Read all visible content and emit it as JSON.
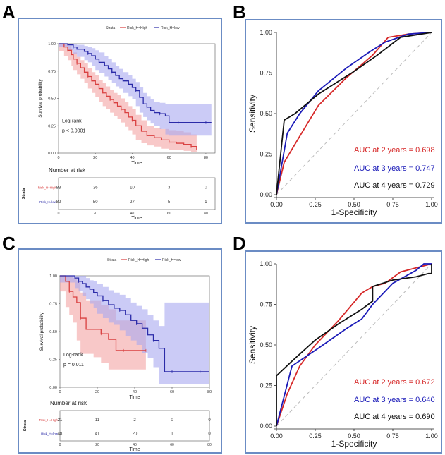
{
  "panel_labels": [
    "A",
    "B",
    "C",
    "D"
  ],
  "chart_data": [
    {
      "panel": "A",
      "type": "line",
      "subtype": "kaplan-meier",
      "legend_title": "Strata",
      "legend": [
        "Risk_H=High",
        "Risk_H=low"
      ],
      "xlabel": "Time",
      "ylabel": "Survival probability",
      "xlim": [
        0,
        85
      ],
      "ylim": [
        0,
        1
      ],
      "xticks": [
        "0",
        "20",
        "40",
        "60",
        "80"
      ],
      "yticks": [
        "0.00",
        "0.25",
        "0.50",
        "0.75",
        "1.00"
      ],
      "annotation": [
        "Log-rank",
        "p < 0.0001"
      ],
      "series": [
        {
          "name": "Risk_H=High",
          "color": "#d94040",
          "band": "#f4a3a3",
          "x": [
            0,
            3,
            5,
            7,
            8,
            10,
            12,
            14,
            16,
            18,
            20,
            22,
            24,
            26,
            28,
            30,
            32,
            34,
            36,
            38,
            40,
            42,
            45,
            48,
            52,
            56,
            60,
            64,
            68,
            72,
            75
          ],
          "y": [
            1,
            0.97,
            0.94,
            0.9,
            0.86,
            0.82,
            0.78,
            0.74,
            0.7,
            0.66,
            0.63,
            0.59,
            0.55,
            0.52,
            0.49,
            0.46,
            0.43,
            0.4,
            0.37,
            0.33,
            0.3,
            0.25,
            0.2,
            0.16,
            0.14,
            0.12,
            0.1,
            0.09,
            0.08,
            0.06,
            0.03
          ],
          "lo": [
            1,
            0.93,
            0.89,
            0.85,
            0.8,
            0.76,
            0.72,
            0.68,
            0.64,
            0.59,
            0.55,
            0.51,
            0.47,
            0.43,
            0.4,
            0.37,
            0.34,
            0.31,
            0.28,
            0.24,
            0.21,
            0.17,
            0.12,
            0.09,
            0.07,
            0.06,
            0.04,
            0.03,
            0.03,
            0.02,
            0.01
          ],
          "hi": [
            1,
            1,
            0.98,
            0.95,
            0.92,
            0.88,
            0.85,
            0.82,
            0.78,
            0.74,
            0.71,
            0.67,
            0.64,
            0.61,
            0.58,
            0.55,
            0.53,
            0.5,
            0.47,
            0.43,
            0.4,
            0.35,
            0.3,
            0.25,
            0.23,
            0.22,
            0.21,
            0.2,
            0.19,
            0.17,
            0.12
          ]
        },
        {
          "name": "Risk_H=low",
          "color": "#2a2aa8",
          "band": "#a8a8f0",
          "x": [
            0,
            5,
            8,
            10,
            14,
            16,
            18,
            20,
            22,
            25,
            27,
            29,
            31,
            33,
            35,
            38,
            40,
            42,
            44,
            46,
            48,
            50,
            52,
            55,
            58,
            60,
            65,
            70,
            75,
            80,
            83
          ],
          "y": [
            1,
            0.99,
            0.97,
            0.95,
            0.93,
            0.91,
            0.89,
            0.86,
            0.83,
            0.8,
            0.77,
            0.74,
            0.71,
            0.68,
            0.66,
            0.63,
            0.6,
            0.57,
            0.51,
            0.45,
            0.42,
            0.39,
            0.37,
            0.36,
            0.34,
            0.28,
            0.28,
            0.28,
            0.28,
            0.28,
            0.28
          ],
          "lo": [
            1,
            0.97,
            0.94,
            0.91,
            0.88,
            0.85,
            0.83,
            0.8,
            0.76,
            0.73,
            0.7,
            0.67,
            0.64,
            0.61,
            0.59,
            0.55,
            0.52,
            0.49,
            0.43,
            0.37,
            0.33,
            0.3,
            0.27,
            0.25,
            0.22,
            0.17,
            0.16,
            0.16,
            0.16,
            0.16,
            0.16
          ],
          "hi": [
            1,
            1,
            1,
            0.99,
            0.98,
            0.97,
            0.96,
            0.94,
            0.92,
            0.89,
            0.86,
            0.83,
            0.8,
            0.77,
            0.74,
            0.71,
            0.68,
            0.65,
            0.6,
            0.55,
            0.52,
            0.49,
            0.47,
            0.46,
            0.45,
            0.45,
            0.45,
            0.45,
            0.45,
            0.45,
            0.45
          ]
        }
      ],
      "risk_table": {
        "title": "Number at risk",
        "strata_label": "Strata",
        "xlabel": "Time",
        "times": [
          "0",
          "20",
          "40",
          "60",
          "80"
        ],
        "rows": [
          {
            "name": "Risk_H=High",
            "color": "#d94040",
            "values": [
              "83",
              "36",
              "10",
              "3",
              "0"
            ]
          },
          {
            "name": "Risk_H=low",
            "color": "#2a2aa8",
            "values": [
              "82",
              "50",
              "27",
              "5",
              "1"
            ]
          }
        ]
      }
    },
    {
      "panel": "B",
      "type": "line",
      "subtype": "roc",
      "xlabel": "1-Specificity",
      "ylabel": "Sensitivity",
      "xlim": [
        0,
        1
      ],
      "ylim": [
        0,
        1
      ],
      "xticks": [
        "0.00",
        "0.25",
        "0.50",
        "0.75",
        "1.00"
      ],
      "yticks": [
        "0.00",
        "0.25",
        "0.50",
        "0.75",
        "1.00"
      ],
      "series": [
        {
          "name": "AUC at 2 years = 0.698",
          "color": "#d62828",
          "x": [
            0,
            0.05,
            0.15,
            0.27,
            0.45,
            0.62,
            0.72,
            0.85,
            1.0
          ],
          "y": [
            0,
            0.2,
            0.36,
            0.55,
            0.72,
            0.86,
            0.97,
            0.99,
            1.0
          ]
        },
        {
          "name": "AUC at 3 years = 0.747",
          "color": "#1a1ab8",
          "x": [
            0,
            0.07,
            0.15,
            0.27,
            0.45,
            0.6,
            0.7,
            0.85,
            1.0
          ],
          "y": [
            0,
            0.38,
            0.5,
            0.64,
            0.78,
            0.88,
            0.94,
            0.99,
            1.0
          ]
        },
        {
          "name": "AUC at 4 years = 0.729",
          "color": "#111111",
          "x": [
            0,
            0.05,
            0.12,
            0.27,
            0.5,
            0.65,
            0.8,
            1.0
          ],
          "y": [
            0,
            0.46,
            0.5,
            0.62,
            0.76,
            0.86,
            0.97,
            1.0
          ]
        }
      ],
      "legend": [
        "AUC at 2 years = 0.698",
        "AUC at 3 years = 0.747",
        "AUC at 4 years = 0.729"
      ]
    },
    {
      "panel": "C",
      "type": "line",
      "subtype": "kaplan-meier",
      "legend_title": "Strata",
      "legend": [
        "Risk_H=High",
        "Risk_H=low"
      ],
      "xlabel": "Time",
      "ylabel": "Survival probability",
      "xlim": [
        0,
        80
      ],
      "ylim": [
        0,
        1
      ],
      "xticks": [
        "0",
        "20",
        "40",
        "60",
        "80"
      ],
      "yticks": [
        "0.00",
        "0.25",
        "0.50",
        "0.75",
        "1.00"
      ],
      "annotation": [
        "Log-rank",
        "p = 0.011"
      ],
      "series": [
        {
          "name": "Risk_H=High",
          "color": "#d94040",
          "band": "#f4a3a3",
          "x": [
            0,
            3,
            5,
            7,
            9,
            11,
            14,
            18,
            22,
            26,
            30,
            34,
            38,
            42,
            46
          ],
          "y": [
            1,
            0.95,
            0.86,
            0.81,
            0.76,
            0.62,
            0.52,
            0.52,
            0.48,
            0.43,
            0.33,
            0.33,
            0.33,
            0.33,
            0.33
          ],
          "lo": [
            1,
            0.86,
            0.72,
            0.65,
            0.58,
            0.42,
            0.3,
            0.3,
            0.27,
            0.22,
            0.16,
            0.16,
            0.16,
            0.16,
            0.16
          ],
          "hi": [
            1,
            1,
            1,
            0.98,
            0.95,
            0.85,
            0.78,
            0.78,
            0.74,
            0.7,
            0.6,
            0.6,
            0.6,
            0.6,
            0.6
          ]
        },
        {
          "name": "Risk_H=low",
          "color": "#2a2aa8",
          "band": "#a8a8f0",
          "x": [
            0,
            8,
            10,
            12,
            14,
            16,
            18,
            20,
            23,
            26,
            29,
            32,
            35,
            38,
            41,
            44,
            47,
            50,
            53,
            56,
            60,
            65,
            70,
            75,
            80
          ],
          "y": [
            1,
            0.98,
            0.95,
            0.93,
            0.9,
            0.88,
            0.85,
            0.82,
            0.78,
            0.74,
            0.71,
            0.69,
            0.65,
            0.6,
            0.57,
            0.53,
            0.47,
            0.42,
            0.35,
            0.14,
            0.14,
            0.14,
            0.14,
            0.14,
            0.14
          ],
          "lo": [
            1,
            0.94,
            0.89,
            0.86,
            0.82,
            0.79,
            0.75,
            0.71,
            0.66,
            0.62,
            0.58,
            0.56,
            0.51,
            0.46,
            0.42,
            0.38,
            0.31,
            0.26,
            0.18,
            0.03,
            0.03,
            0.03,
            0.03,
            0.03,
            0.03
          ],
          "hi": [
            1,
            1,
            1,
            1,
            0.98,
            0.96,
            0.95,
            0.93,
            0.9,
            0.87,
            0.85,
            0.83,
            0.8,
            0.76,
            0.73,
            0.7,
            0.65,
            0.6,
            0.55,
            0.76,
            0.76,
            0.76,
            0.76,
            0.76,
            0.76
          ]
        }
      ],
      "risk_table": {
        "title": "Number at risk",
        "strata_label": "Strata",
        "xlabel": "Time",
        "times": [
          "0",
          "20",
          "40",
          "60",
          "80"
        ],
        "rows": [
          {
            "name": "Risk_H=High",
            "color": "#d94040",
            "values": [
              "21",
              "11",
              "2",
              "0",
              "0"
            ]
          },
          {
            "name": "Risk_H=low",
            "color": "#2a2aa8",
            "values": [
              "48",
              "41",
              "20",
              "1",
              "0"
            ]
          }
        ]
      }
    },
    {
      "panel": "D",
      "type": "line",
      "subtype": "roc",
      "xlabel": "1-Specificity",
      "ylabel": "Sensitivity",
      "xlim": [
        0,
        1
      ],
      "ylim": [
        0,
        1
      ],
      "xticks": [
        "0.00",
        "0.25",
        "0.50",
        "0.75",
        "1.00"
      ],
      "yticks": [
        "0.00",
        "0.25",
        "0.50",
        "0.75",
        "1.00"
      ],
      "series": [
        {
          "name": "AUC at 2 years = 0.672",
          "color": "#d62828",
          "x": [
            0,
            0.07,
            0.15,
            0.25,
            0.4,
            0.55,
            0.62,
            0.7,
            0.8,
            0.88,
            1.0
          ],
          "y": [
            0,
            0.2,
            0.37,
            0.5,
            0.65,
            0.82,
            0.86,
            0.88,
            0.95,
            0.97,
            1.0
          ]
        },
        {
          "name": "AUC at 3 years = 0.640",
          "color": "#1a1ab8",
          "x": [
            0,
            0.1,
            0.27,
            0.45,
            0.55,
            0.62,
            0.75,
            0.9,
            0.95,
            1.0
          ],
          "y": [
            0,
            0.37,
            0.48,
            0.6,
            0.66,
            0.75,
            0.88,
            0.96,
            1.0,
            1.0
          ]
        },
        {
          "name": "AUC at 4 years = 0.690",
          "color": "#111111",
          "x": [
            0,
            0,
            0.1,
            0.25,
            0.4,
            0.55,
            0.62,
            0.62,
            0.75,
            0.9,
            0.98,
            1.0,
            1.0
          ],
          "y": [
            0,
            0.31,
            0.4,
            0.53,
            0.63,
            0.72,
            0.77,
            0.86,
            0.9,
            0.92,
            0.94,
            0.94,
            1.0
          ]
        }
      ],
      "legend": [
        "AUC at 2 years = 0.672",
        "AUC at 3 years = 0.640",
        "AUC at 4 years = 0.690"
      ]
    }
  ]
}
